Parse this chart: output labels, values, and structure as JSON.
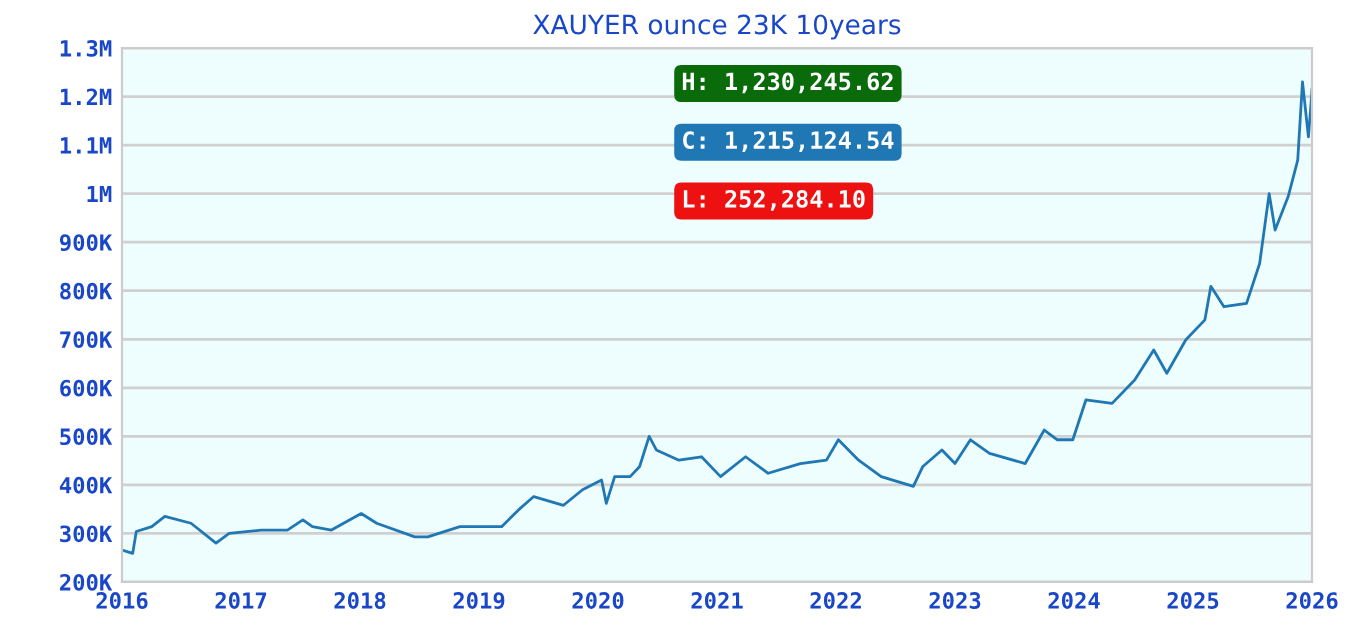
{
  "chart_data": {
    "type": "line",
    "title": "XAUYER ounce 23K 10years",
    "x": [
      2016.0,
      2016.09,
      2016.12,
      2016.25,
      2016.36,
      2016.58,
      2016.79,
      2016.9,
      2017.17,
      2017.39,
      2017.52,
      2017.6,
      2017.76,
      2018.01,
      2018.14,
      2018.46,
      2018.57,
      2018.84,
      2019.19,
      2019.33,
      2019.46,
      2019.71,
      2019.87,
      2020.03,
      2020.07,
      2020.14,
      2020.27,
      2020.35,
      2020.43,
      2020.49,
      2020.68,
      2020.87,
      2021.03,
      2021.24,
      2021.43,
      2021.7,
      2021.92,
      2022.02,
      2022.19,
      2022.38,
      2022.65,
      2022.73,
      2022.89,
      2023.0,
      2023.13,
      2023.29,
      2023.59,
      2023.75,
      2023.86,
      2023.99,
      2024.1,
      2024.32,
      2024.51,
      2024.67,
      2024.78,
      2024.94,
      2025.1,
      2025.15,
      2025.26,
      2025.45,
      2025.56,
      2025.64,
      2025.69,
      2025.8,
      2025.88,
      2025.92,
      2025.97,
      2025.99,
      2026.0
    ],
    "values": [
      266000,
      259000,
      304000,
      314000,
      335000,
      321000,
      280000,
      300000,
      307000,
      307000,
      328000,
      314000,
      307000,
      341000,
      321000,
      293000,
      293000,
      314000,
      314000,
      348000,
      376000,
      358000,
      390000,
      410000,
      362000,
      417000,
      417000,
      438000,
      500000,
      472000,
      451000,
      458000,
      417000,
      458000,
      424000,
      444000,
      451000,
      493000,
      451000,
      417000,
      397000,
      438000,
      472000,
      444000,
      493000,
      465000,
      444000,
      513000,
      493000,
      493000,
      575000,
      568000,
      616000,
      678000,
      630000,
      699000,
      740000,
      809000,
      767000,
      774000,
      856000,
      1000000,
      925000,
      994000,
      1069000,
      1230000,
      1117000,
      1179000,
      1215000
    ],
    "color": "#1f77b4",
    "xlim": [
      2016,
      2026
    ],
    "xticks": [
      2016,
      2017,
      2018,
      2019,
      2020,
      2021,
      2022,
      2023,
      2024,
      2025,
      2026
    ],
    "ylim": [
      200000,
      1300000
    ],
    "yticks": [
      {
        "value": 200000,
        "label": "200K"
      },
      {
        "value": 300000,
        "label": "300K"
      },
      {
        "value": 400000,
        "label": "400K"
      },
      {
        "value": 500000,
        "label": "500K"
      },
      {
        "value": 600000,
        "label": "600K"
      },
      {
        "value": 700000,
        "label": "700K"
      },
      {
        "value": 800000,
        "label": "800K"
      },
      {
        "value": 900000,
        "label": "900K"
      },
      {
        "value": 1000000,
        "label": "1M"
      },
      {
        "value": 1100000,
        "label": "1.1M"
      },
      {
        "value": 1200000,
        "label": "1.2M"
      },
      {
        "value": 1300000,
        "label": "1.3M"
      }
    ],
    "grid": "y",
    "annotations": [
      "H: 1,230,245.62",
      "C: 1,215,124.54",
      "L: 252,284.10"
    ]
  }
}
